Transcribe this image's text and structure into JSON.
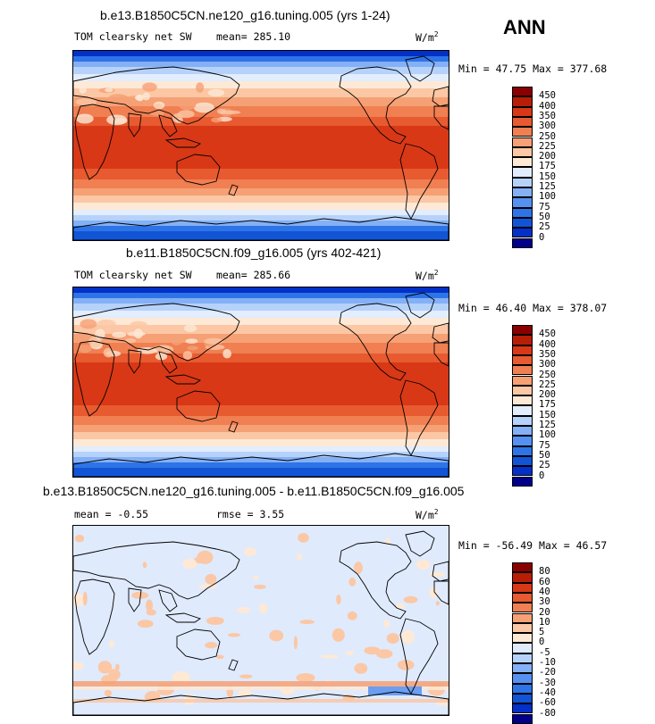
{
  "season": "ANN",
  "colors": {
    "abs": [
      "#02008a",
      "#0230c8",
      "#1155d6",
      "#2e74e6",
      "#5591f0",
      "#84b0f6",
      "#b6d2fb",
      "#e2edfd",
      "#fde9d6",
      "#fbc7a4",
      "#f6a075",
      "#f07f52",
      "#e85a30",
      "#d83816",
      "#b81e06",
      "#8a0000"
    ],
    "diff": [
      "#02008a",
      "#0230c8",
      "#1155d6",
      "#2e74e6",
      "#5591f0",
      "#84b0f6",
      "#b6d2fb",
      "#dfeafd",
      "#fde9d6",
      "#fbc7a4",
      "#f6a075",
      "#f07f52",
      "#e85a30",
      "#d83816",
      "#b81e06",
      "#8a0000"
    ]
  },
  "panels": [
    {
      "title": "b.e13.B1850C5CN.ne120_g16.tuning.005 (yrs 1-24)",
      "variable": "TOM clearsky net SW",
      "mean_label": "mean=",
      "mean": "285.10",
      "units": "W/m",
      "units_exp": "2",
      "min_label": "Min =",
      "min": "47.75",
      "max_label": "Max =",
      "max": "377.68",
      "levels": [
        "450",
        "400",
        "350",
        "300",
        "250",
        "225",
        "200",
        "175",
        "150",
        "125",
        "100",
        "75",
        "50",
        "25",
        "0"
      ]
    },
    {
      "title": "b.e11.B1850C5CN.f09_g16.005 (yrs 402-421)",
      "variable": "TOM clearsky net SW",
      "mean_label": "mean=",
      "mean": "285.66",
      "units": "W/m",
      "units_exp": "2",
      "min_label": "Min =",
      "min": "46.40",
      "max_label": "Max =",
      "max": "378.07",
      "levels": [
        "450",
        "400",
        "350",
        "300",
        "250",
        "225",
        "200",
        "175",
        "150",
        "125",
        "100",
        "75",
        "50",
        "25",
        "0"
      ]
    },
    {
      "title": "b.e13.B1850C5CN.ne120_g16.tuning.005 - b.e11.B1850C5CN.f09_g16.005",
      "mean_label": "mean =",
      "mean": "-0.55",
      "rmse_label": "rmse =",
      "rmse": "3.55",
      "units": "W/m",
      "units_exp": "2",
      "min_label": "Min =",
      "min": "-56.49",
      "max_label": "Max =",
      "max": "46.57",
      "levels": [
        "80",
        "60",
        "40",
        "30",
        "20",
        "10",
        "5",
        "0",
        "-5",
        "-10",
        "-20",
        "-30",
        "-40",
        "-60",
        "-80"
      ]
    }
  ]
}
